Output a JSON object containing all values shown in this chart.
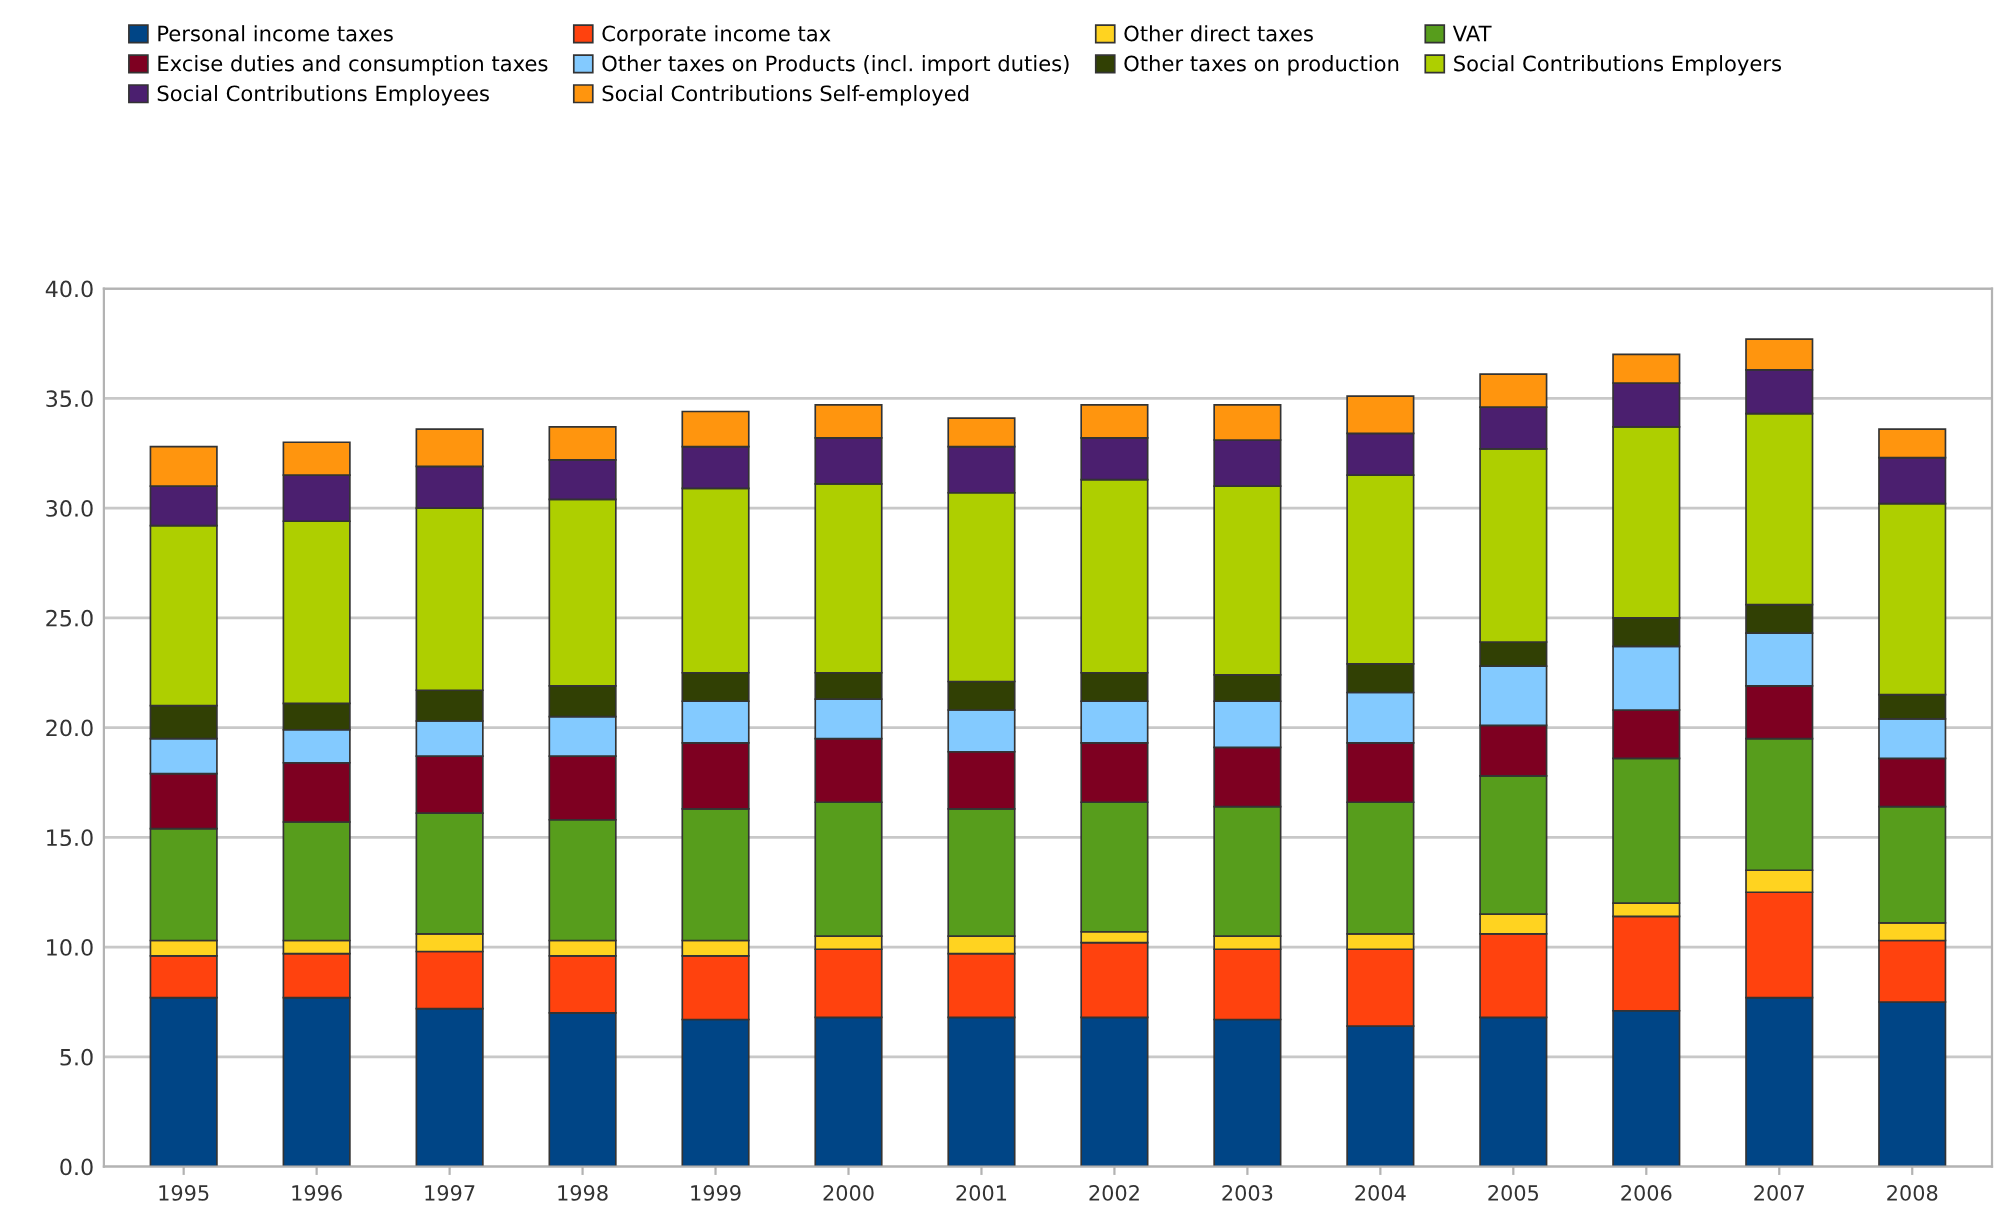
{
  "chart_data": {
    "type": "bar",
    "stacked": true,
    "legend": "top",
    "grid": "y",
    "categories": [
      "1995",
      "1996",
      "1997",
      "1998",
      "1999",
      "2000",
      "2001",
      "2002",
      "2003",
      "2004",
      "2005",
      "2006",
      "2007",
      "2008"
    ],
    "ylim": [
      0,
      40
    ],
    "yticks": [
      {
        "value": 0,
        "label": "0.0"
      },
      {
        "value": 5,
        "label": "5.0"
      },
      {
        "value": 10,
        "label": "10.0"
      },
      {
        "value": 15,
        "label": "15.0"
      },
      {
        "value": 20,
        "label": "20.0"
      },
      {
        "value": 25,
        "label": "25.0"
      },
      {
        "value": 30,
        "label": "30.0"
      },
      {
        "value": 35,
        "label": "35.0"
      },
      {
        "value": 40,
        "label": "40.0"
      }
    ],
    "series": [
      {
        "name": "Personal income taxes",
        "color": "#004586",
        "values": [
          7.7,
          7.7,
          7.2,
          7.0,
          6.7,
          6.8,
          6.8,
          6.8,
          6.7,
          6.4,
          6.8,
          7.1,
          7.7,
          7.5
        ]
      },
      {
        "name": "Corporate income tax",
        "color": "#ff420e",
        "values": [
          1.9,
          2.0,
          2.6,
          2.6,
          2.9,
          3.1,
          2.9,
          3.4,
          3.2,
          3.5,
          3.8,
          4.3,
          4.8,
          2.8
        ]
      },
      {
        "name": "Other direct taxes",
        "color": "#ffd320",
        "values": [
          0.7,
          0.6,
          0.8,
          0.7,
          0.7,
          0.6,
          0.8,
          0.5,
          0.6,
          0.7,
          0.9,
          0.6,
          1.0,
          0.8
        ]
      },
      {
        "name": "VAT",
        "color": "#579d1c",
        "values": [
          5.1,
          5.4,
          5.5,
          5.5,
          6.0,
          6.1,
          5.8,
          5.9,
          5.9,
          6.0,
          6.3,
          6.6,
          6.0,
          5.3
        ]
      },
      {
        "name": "Excise duties and consumption taxes",
        "color": "#7e0021",
        "values": [
          2.5,
          2.7,
          2.6,
          2.9,
          3.0,
          2.9,
          2.6,
          2.7,
          2.7,
          2.7,
          2.3,
          2.2,
          2.4,
          2.2
        ]
      },
      {
        "name": "Other taxes on Products (incl. import duties)",
        "color": "#83caff",
        "values": [
          1.6,
          1.5,
          1.6,
          1.8,
          1.9,
          1.8,
          1.9,
          1.9,
          2.1,
          2.3,
          2.7,
          2.9,
          2.4,
          1.8
        ]
      },
      {
        "name": "Other taxes on production",
        "color": "#314004",
        "values": [
          1.5,
          1.2,
          1.4,
          1.4,
          1.3,
          1.2,
          1.3,
          1.3,
          1.2,
          1.3,
          1.1,
          1.3,
          1.3,
          1.1
        ]
      },
      {
        "name": "Social Contributions Employers",
        "color": "#aecf00",
        "values": [
          8.2,
          8.3,
          8.3,
          8.5,
          8.4,
          8.6,
          8.6,
          8.8,
          8.6,
          8.6,
          8.8,
          8.7,
          8.7,
          8.7
        ]
      },
      {
        "name": "Social Contributions Employees",
        "color": "#4b1f6f",
        "values": [
          1.8,
          2.1,
          1.9,
          1.8,
          1.9,
          2.1,
          2.1,
          1.9,
          2.1,
          1.9,
          1.9,
          2.0,
          2.0,
          2.1
        ]
      },
      {
        "name": "Social Contributions Self-employed",
        "color": "#ff950e",
        "values": [
          1.8,
          1.5,
          1.7,
          1.5,
          1.6,
          1.5,
          1.3,
          1.5,
          1.6,
          1.7,
          1.5,
          1.3,
          1.4,
          1.3
        ]
      }
    ]
  }
}
